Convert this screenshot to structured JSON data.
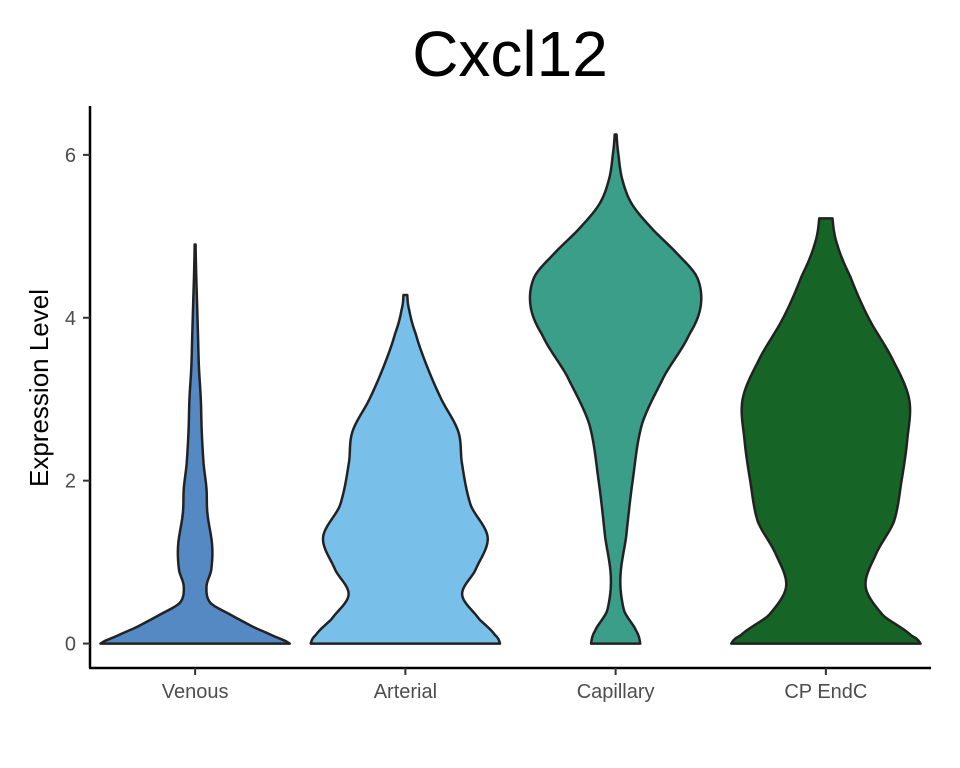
{
  "chart_data": {
    "type": "violin",
    "title": "Cxcl12",
    "xlabel": "",
    "ylabel": "Expression Level",
    "ylim": [
      -0.3,
      6.6
    ],
    "yticks": [
      0,
      2,
      4,
      6
    ],
    "yticklabels": [
      "0",
      "2",
      "4",
      "6"
    ],
    "categories": [
      "Venous",
      "Arterial",
      "Capillary",
      "CP EndC"
    ],
    "grid": false,
    "legend": "none",
    "series": [
      {
        "category": "Venous",
        "color": "#5589c4",
        "max": 4.9,
        "density": [
          [
            0,
            1
          ],
          [
            0.08,
            0.85
          ],
          [
            0.2,
            0.62
          ],
          [
            0.35,
            0.38
          ],
          [
            0.5,
            0.16
          ],
          [
            0.7,
            0.12
          ],
          [
            0.9,
            0.17
          ],
          [
            1.2,
            0.18
          ],
          [
            1.6,
            0.13
          ],
          [
            1.9,
            0.12
          ],
          [
            2.2,
            0.09
          ],
          [
            2.6,
            0.07
          ],
          [
            3.0,
            0.06
          ],
          [
            3.4,
            0.04
          ],
          [
            3.8,
            0.03
          ],
          [
            4.2,
            0.02
          ],
          [
            4.6,
            0.01
          ],
          [
            4.9,
            0.005
          ]
        ]
      },
      {
        "category": "Arterial",
        "color": "#78bfea",
        "max": 4.28,
        "density": [
          [
            0,
            1
          ],
          [
            0.1,
            0.95
          ],
          [
            0.3,
            0.78
          ],
          [
            0.6,
            0.6
          ],
          [
            0.9,
            0.74
          ],
          [
            1.3,
            0.87
          ],
          [
            1.7,
            0.69
          ],
          [
            2.2,
            0.6
          ],
          [
            2.6,
            0.56
          ],
          [
            3.0,
            0.38
          ],
          [
            3.4,
            0.23
          ],
          [
            3.8,
            0.11
          ],
          [
            4.1,
            0.04
          ],
          [
            4.28,
            0.02
          ]
        ]
      },
      {
        "category": "Capillary",
        "color": "#3b9e89",
        "max": 6.25,
        "density": [
          [
            0,
            0.26
          ],
          [
            0.15,
            0.22
          ],
          [
            0.4,
            0.09
          ],
          [
            0.8,
            0.05
          ],
          [
            1.3,
            0.11
          ],
          [
            2.0,
            0.18
          ],
          [
            2.7,
            0.28
          ],
          [
            3.3,
            0.52
          ],
          [
            3.8,
            0.78
          ],
          [
            4.15,
            0.9
          ],
          [
            4.5,
            0.86
          ],
          [
            4.8,
            0.64
          ],
          [
            5.1,
            0.38
          ],
          [
            5.4,
            0.17
          ],
          [
            5.7,
            0.07
          ],
          [
            6.0,
            0.03
          ],
          [
            6.25,
            0.01
          ]
        ]
      },
      {
        "category": "CP EndC",
        "color": "#166527",
        "max": 5.22,
        "density": [
          [
            0,
            1
          ],
          [
            0.1,
            0.9
          ],
          [
            0.35,
            0.6
          ],
          [
            0.7,
            0.42
          ],
          [
            1.1,
            0.53
          ],
          [
            1.5,
            0.72
          ],
          [
            2.0,
            0.8
          ],
          [
            2.5,
            0.86
          ],
          [
            3.0,
            0.88
          ],
          [
            3.5,
            0.7
          ],
          [
            4.0,
            0.45
          ],
          [
            4.5,
            0.26
          ],
          [
            4.9,
            0.12
          ],
          [
            5.22,
            0.07
          ]
        ]
      }
    ]
  }
}
